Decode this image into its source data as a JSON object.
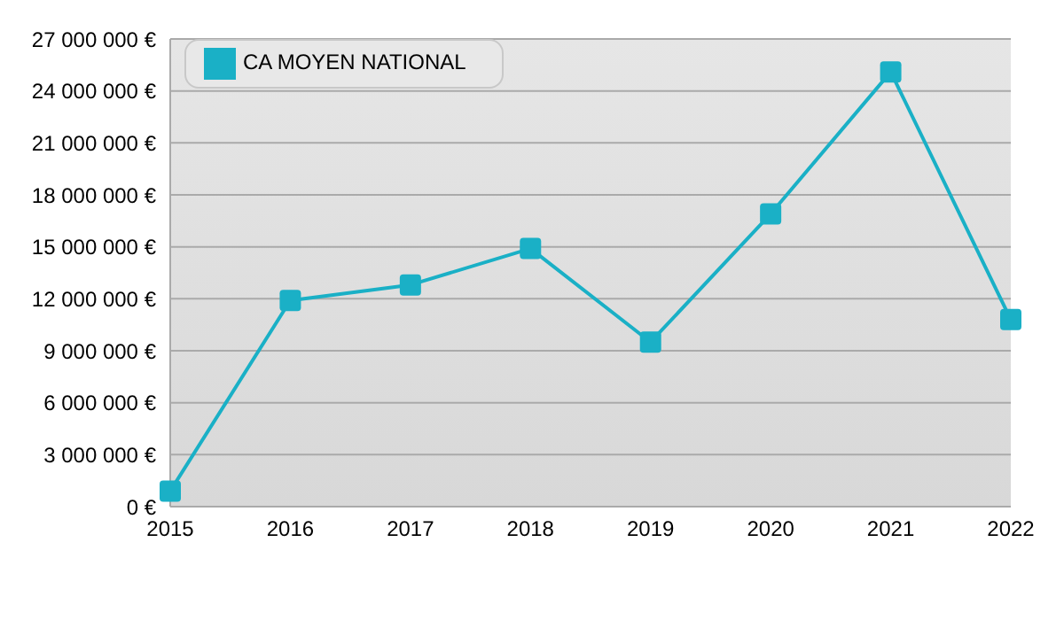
{
  "chart_data": {
    "type": "line",
    "categories": [
      "2015",
      "2016",
      "2017",
      "2018",
      "2019",
      "2020",
      "2021",
      "2022"
    ],
    "series": [
      {
        "name": "CA MOYEN NATIONAL",
        "color": "#1ab0c6",
        "values": [
          900000,
          11900000,
          12800000,
          14900000,
          9500000,
          16900000,
          25100000,
          10800000
        ]
      }
    ],
    "ylim": [
      0,
      27000000
    ],
    "yticks": [
      {
        "value": 0,
        "label": "0 €"
      },
      {
        "value": 3000000,
        "label": "3 000 000 €"
      },
      {
        "value": 6000000,
        "label": "6 000 000 €"
      },
      {
        "value": 9000000,
        "label": "9 000 000 €"
      },
      {
        "value": 12000000,
        "label": "12 000 000 €"
      },
      {
        "value": 15000000,
        "label": "15 000 000 €"
      },
      {
        "value": 18000000,
        "label": "18 000 000 €"
      },
      {
        "value": 21000000,
        "label": "21 000 000 €"
      },
      {
        "value": 24000000,
        "label": "24 000 000 €"
      },
      {
        "value": 27000000,
        "label": "27 000 000 €"
      }
    ],
    "grid": "y",
    "legend": "top left",
    "marker": "square",
    "line_style": "solid"
  }
}
